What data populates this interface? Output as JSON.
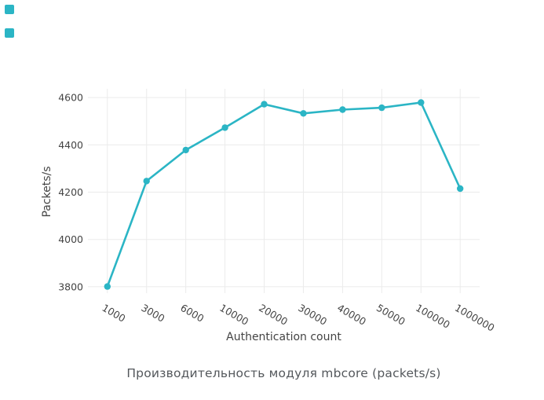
{
  "page": {
    "background": "#ffffff",
    "corner_badge_color": "#2bb5c5"
  },
  "chart_data": {
    "type": "line",
    "title": "Производительность модуля mbcore (packets/s)",
    "xlabel": "Authentication count",
    "ylabel": "Packets/s",
    "categories": [
      "1000",
      "3000",
      "6000",
      "10000",
      "20000",
      "30000",
      "40000",
      "50000",
      "100000",
      "1000000"
    ],
    "values": [
      3801,
      4247,
      4378,
      4473,
      4572,
      4533,
      4549,
      4557,
      4579,
      4215
    ],
    "yticks": [
      3800,
      4000,
      4200,
      4400,
      4600
    ],
    "ylim": [
      3773,
      4637
    ],
    "xtick_angle": 30,
    "grid": true,
    "legend_position": "none",
    "line_color": "#2bb5c5",
    "marker_color": "#2bb5c5",
    "grid_color": "#ebebeb",
    "tick_color": "#444444",
    "title_color": "#54585c"
  }
}
